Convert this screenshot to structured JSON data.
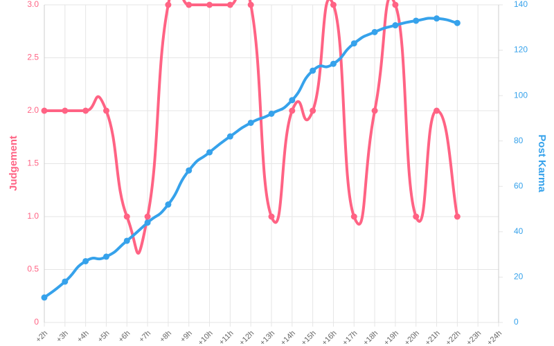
{
  "chart_data": {
    "type": "line",
    "categories": [
      "+2h",
      "+3h",
      "+4h",
      "+5h",
      "+6h",
      "+7h",
      "+8h",
      "+9h",
      "+10h",
      "+11h",
      "+12h",
      "+13h",
      "+14h",
      "+15h",
      "+16h",
      "+17h",
      "+18h",
      "+19h",
      "+20h",
      "+21h",
      "+22h",
      "+23h",
      "+24h"
    ],
    "series": [
      {
        "name": "Judgement",
        "color": "#ff6384",
        "axis": "y",
        "values": [
          2,
          2,
          2,
          2,
          1,
          1,
          3,
          3,
          3,
          3,
          3,
          1,
          2,
          2,
          3,
          1,
          2,
          3,
          1,
          2,
          1,
          null,
          null
        ]
      },
      {
        "name": "Post Karma",
        "color": "#36a2eb",
        "axis": "y2",
        "values": [
          11,
          18,
          27,
          29,
          36,
          44,
          52,
          67,
          75,
          82,
          88,
          92,
          98,
          111,
          114,
          123,
          128,
          131,
          133,
          134,
          132,
          null,
          null
        ]
      }
    ],
    "ylabel": "Judgement",
    "y2label": "Post Karma",
    "ylim": [
      0,
      3
    ],
    "yticks": [
      0,
      0.5,
      {
        "value": 1,
        "label": "1.0"
      },
      1.5,
      {
        "value": 2,
        "label": "2.0"
      },
      2.5,
      {
        "value": 3,
        "label": "3.0"
      }
    ],
    "y2lim": [
      0,
      140
    ],
    "y2ticks": [
      0,
      20,
      40,
      60,
      80,
      100,
      120,
      140
    ],
    "grid": true
  }
}
